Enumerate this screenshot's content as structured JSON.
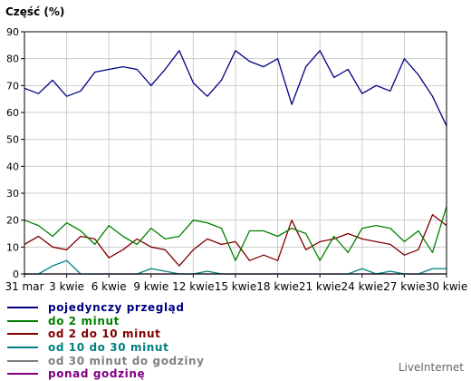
{
  "chart_data": {
    "type": "line",
    "ylabel": "Część (%)",
    "ylim": [
      0,
      90
    ],
    "yticks": [
      0,
      10,
      20,
      30,
      40,
      50,
      60,
      70,
      80,
      90
    ],
    "grid": true,
    "legend_position": "bottom-left",
    "x_ticks": [
      {
        "day": 0,
        "label": "31 mar"
      },
      {
        "day": 3,
        "label": "3 kwie"
      },
      {
        "day": 6,
        "label": "6 kwie"
      },
      {
        "day": 9,
        "label": "9 kwie"
      },
      {
        "day": 12,
        "label": "12 kwie"
      },
      {
        "day": 15,
        "label": "15 kwie"
      },
      {
        "day": 18,
        "label": "18 kwie"
      },
      {
        "day": 21,
        "label": "21 kwie"
      },
      {
        "day": 24,
        "label": "24 kwie"
      },
      {
        "day": 27,
        "label": "27 kwie"
      },
      {
        "day": 30,
        "label": "30 kwie"
      }
    ],
    "series": [
      {
        "name": "pojedynczy przegląd",
        "color": "#000080",
        "values": [
          69,
          67,
          72,
          66,
          68,
          75,
          76,
          77,
          76,
          70,
          76,
          83,
          71,
          66,
          72,
          83,
          79,
          77,
          80,
          63,
          77,
          83,
          73,
          76,
          67,
          70,
          68,
          80,
          74,
          66,
          55
        ]
      },
      {
        "name": "do 2 minut",
        "color": "#008000",
        "values": [
          20,
          18,
          14,
          19,
          16,
          11,
          18,
          14,
          11,
          17,
          13,
          14,
          20,
          19,
          17,
          5,
          16,
          16,
          14,
          17,
          15,
          5,
          14,
          8,
          17,
          18,
          17,
          12,
          16,
          8,
          25
        ]
      },
      {
        "name": "od 2 do 10 minut",
        "color": "#800000",
        "values": [
          11,
          14,
          10,
          9,
          14,
          13,
          6,
          9,
          13,
          10,
          9,
          3,
          9,
          13,
          11,
          12,
          5,
          7,
          5,
          20,
          9,
          12,
          13,
          15,
          13,
          12,
          11,
          7,
          9,
          22,
          18
        ]
      },
      {
        "name": "od 10 do 30 minut",
        "color": "#008080",
        "values": [
          0,
          0,
          3,
          5,
          0,
          0,
          0,
          0,
          0,
          2,
          1,
          0,
          0,
          1,
          0,
          0,
          0,
          0,
          0,
          0,
          0,
          0,
          0,
          0,
          2,
          0,
          1,
          0,
          0,
          2,
          2
        ]
      },
      {
        "name": "od 30 minut do godziny",
        "color": "#808080",
        "values": [
          0,
          0,
          0,
          0,
          0,
          0,
          0,
          0,
          0,
          0,
          0,
          0,
          0,
          0,
          0,
          0,
          0,
          0,
          0,
          0,
          0,
          0,
          0,
          0,
          0,
          0,
          0,
          0,
          0,
          0,
          0
        ]
      },
      {
        "name": "ponad godzinę",
        "color": "#800080",
        "values": [
          0,
          0,
          0,
          0,
          0,
          0,
          0,
          0,
          0,
          0,
          0,
          0,
          0,
          0,
          0,
          0,
          0,
          0,
          0,
          0,
          0,
          0,
          0,
          0,
          0,
          0,
          0,
          0,
          0,
          0,
          0
        ]
      }
    ],
    "colors": {
      "axis": "#000000",
      "grid": "#cccccc"
    }
  },
  "footer": {
    "brand": "LiveInternet"
  }
}
